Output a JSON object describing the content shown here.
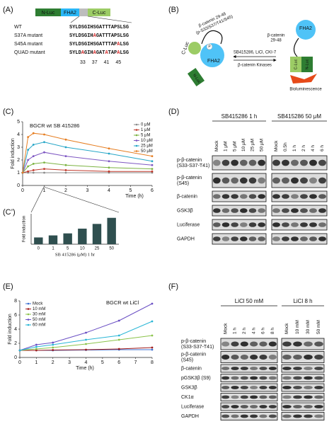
{
  "panel_labels": {
    "A": "(A)",
    "B": "(B)",
    "C": "(C)",
    "C2": "(C’)",
    "D": "(D)",
    "E": "(E)",
    "F": "(F)"
  },
  "construct": {
    "domains": {
      "n": "N-Luc",
      "fha": "FHA2",
      "c": "C-Luc"
    },
    "rows": [
      {
        "name": "WT",
        "sequence": "SYLDSGIHSGATTTAPSLSG"
      },
      {
        "name": "S37A mutant",
        "sequence": "SYLDSGIHAGATTTAPSLSG"
      },
      {
        "name": "S45A mutant",
        "sequence": "SYLDSGIHSGATTTAPALSG"
      },
      {
        "name": "QUAD mutant",
        "sequence": "SYLDAGIHAGATATAPALSG"
      }
    ],
    "positions": [
      33,
      37,
      41,
      45
    ]
  },
  "scheme": {
    "peptide_p": "β-catenin 29-48",
    "phospho": "(p-S33/S37/T41/S45)",
    "peptide_a": "β-catenin",
    "peptide_b": "29-48",
    "inhibitors": "SB415286, LiCl, CKI-7",
    "kinases": "β-catenin Kinases",
    "readout": "Bioluminescence",
    "c_luc": "C-Luc",
    "n_luc": "N-Luc",
    "fha": "FHA2",
    "p": "P"
  },
  "chart_data": [
    {
      "type": "line",
      "title": "BGCR wt SB 415286",
      "xlabel": "Time (h)",
      "ylabel": "Fold induction",
      "x": [
        0,
        0.25,
        0.5,
        1,
        2,
        4,
        6
      ],
      "xlim": [
        0,
        6
      ],
      "xticks": [
        0,
        1,
        2,
        3,
        4,
        5,
        6
      ],
      "ylim": [
        0,
        5
      ],
      "yticks": [
        0,
        1,
        2,
        3,
        4,
        5
      ],
      "legend": "upper right",
      "series": [
        {
          "name": "0 μM",
          "color": "#8a8a8a",
          "values": [
            1,
            1.0,
            1.0,
            1.0,
            1.0,
            1.0,
            1.0
          ]
        },
        {
          "name": "1 μM",
          "color": "#c0392b",
          "values": [
            1,
            1.1,
            1.2,
            1.3,
            1.2,
            1.1,
            1.1
          ]
        },
        {
          "name": "5 μM",
          "color": "#7cb342",
          "values": [
            1,
            1.5,
            1.7,
            1.8,
            1.6,
            1.4,
            1.3
          ]
        },
        {
          "name": "10 μM",
          "color": "#7e57c2",
          "values": [
            1,
            2.0,
            2.3,
            2.6,
            2.3,
            1.9,
            1.6
          ]
        },
        {
          "name": "25 μM",
          "color": "#26a6c7",
          "values": [
            1,
            2.8,
            3.2,
            3.4,
            3.0,
            2.5,
            1.9
          ]
        },
        {
          "name": "50 μM",
          "color": "#e67e22",
          "values": [
            1,
            3.8,
            4.1,
            4.0,
            3.6,
            2.9,
            2.3
          ]
        }
      ]
    },
    {
      "type": "bar",
      "xlabel": "SB 415286 (μM) 1 hr",
      "ylabel": "Fold induction",
      "categories": [
        "0",
        "1",
        "5",
        "10",
        "25",
        "50"
      ],
      "values": [
        1,
        1.3,
        1.6,
        2.3,
        3.0,
        3.9
      ],
      "ylim": [
        0,
        4.5
      ],
      "color": "#2f4f4f"
    },
    {
      "type": "line",
      "title": "BGCR wt LiCl",
      "xlabel": "Time (h)",
      "ylabel": "Fold induction",
      "x": [
        0,
        1,
        2,
        4,
        6,
        8
      ],
      "xlim": [
        0,
        8
      ],
      "xticks": [
        0,
        1,
        2,
        3,
        4,
        5,
        6,
        7,
        8
      ],
      "ylim": [
        0,
        8
      ],
      "yticks": [
        0,
        2,
        4,
        6,
        8
      ],
      "legend": "upper left",
      "series": [
        {
          "name": "Mock",
          "color": "#3b6fd1",
          "values": [
            1,
            1.0,
            1.0,
            1.05,
            1.1,
            1.1
          ]
        },
        {
          "name": "10 mM",
          "color": "#a01818",
          "values": [
            1,
            1.0,
            1.05,
            1.1,
            1.2,
            1.4
          ]
        },
        {
          "name": "30 mM",
          "color": "#8bc34a",
          "values": [
            1,
            1.2,
            1.4,
            1.9,
            2.5,
            3.1
          ]
        },
        {
          "name": "50 mM",
          "color": "#6a4fc4",
          "values": [
            1,
            1.8,
            2.1,
            3.5,
            5.2,
            7.6
          ]
        },
        {
          "name": "60 mM",
          "color": "#29b6d6",
          "values": [
            1,
            1.5,
            1.8,
            2.5,
            3.1,
            5.1
          ]
        }
      ]
    }
  ],
  "blot_D": {
    "groups": [
      {
        "title": "SB415286 1 h",
        "lanes": [
          "Mock",
          "1 μM",
          "5 μM",
          "10 μM",
          "25 μM",
          "50 μM"
        ]
      },
      {
        "title": "SB415286 50 μM",
        "lanes": [
          "Mock",
          "0.5h",
          "1 h",
          "2 h",
          "4 h",
          "6 h"
        ]
      }
    ],
    "rows": [
      [
        "p-β-catenin",
        "(S33-S37-T41)"
      ],
      [
        "p-β-catenin",
        "(S45)"
      ],
      [
        "β-catenin"
      ],
      [
        "GSK3β"
      ],
      [
        "Luciferase"
      ],
      [
        "GAPDH"
      ]
    ]
  },
  "blot_F": {
    "groups": [
      {
        "title": "LiCl 50 mM",
        "lanes": [
          "Mock",
          "1 h",
          "2 h",
          "4 h",
          "6 h",
          "8 h"
        ]
      },
      {
        "title": "LiCl  8 h",
        "lanes": [
          "Mock",
          "10 mM",
          "30 mM",
          "50 mM"
        ]
      }
    ],
    "rows": [
      [
        "p-β-catenin",
        "(S33-S37-T41)"
      ],
      [
        "p-β-catenin",
        "(S45)"
      ],
      [
        "β-catenin"
      ],
      [
        "pGSK3β (S9)"
      ],
      [
        "GSK3β"
      ],
      [
        "CK1α"
      ],
      [
        "Luciferase"
      ],
      [
        "GAPDH"
      ]
    ]
  }
}
